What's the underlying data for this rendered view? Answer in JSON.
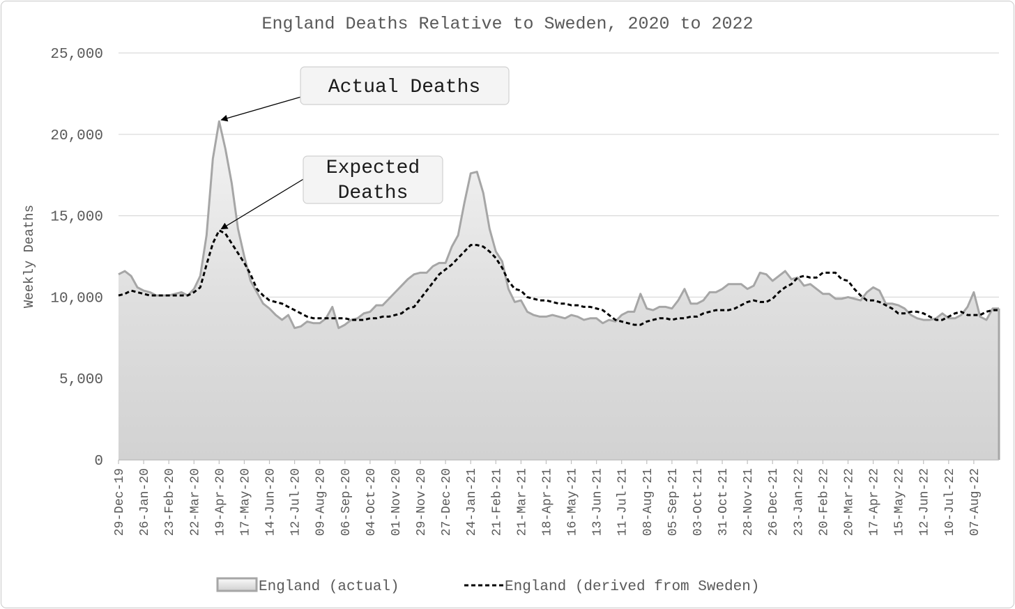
{
  "chart_data": {
    "type": "area",
    "title": "England Deaths Relative to Sweden, 2020 to 2022",
    "ylabel": "Weekly Deaths",
    "xlabel": "",
    "ylim": [
      0,
      25000
    ],
    "yticks": [
      0,
      5000,
      10000,
      15000,
      20000,
      25000
    ],
    "ytick_labels": [
      "0",
      "5,000",
      "10,000",
      "15,000",
      "20,000",
      "25,000"
    ],
    "grid": "horizontal",
    "legend_position": "bottom",
    "x_start": "29-Dec-19",
    "x_labels": [
      "29-Dec-19",
      "26-Jan-20",
      "23-Feb-20",
      "22-Mar-20",
      "19-Apr-20",
      "17-May-20",
      "14-Jun-20",
      "12-Jul-20",
      "09-Aug-20",
      "06-Sep-20",
      "04-Oct-20",
      "01-Nov-20",
      "29-Nov-20",
      "27-Dec-20",
      "24-Jan-21",
      "21-Feb-21",
      "21-Mar-21",
      "18-Apr-21",
      "16-May-21",
      "13-Jun-21",
      "11-Jul-21",
      "08-Aug-21",
      "05-Sep-21",
      "03-Oct-21",
      "31-Oct-21",
      "28-Nov-21",
      "26-Dec-21",
      "23-Jan-22",
      "20-Feb-22",
      "20-Mar-22",
      "17-Apr-22",
      "15-May-22",
      "12-Jun-22",
      "10-Jul-22",
      "07-Aug-22"
    ],
    "series": [
      {
        "name": "England (actual)",
        "style": "area",
        "color": "#a6a6a6",
        "values": [
          11400,
          11600,
          11300,
          10600,
          10400,
          10300,
          10100,
          10100,
          10100,
          10200,
          10300,
          10100,
          10500,
          11300,
          13800,
          18500,
          20800,
          19100,
          17000,
          14200,
          12500,
          11000,
          10300,
          9600,
          9300,
          8900,
          8600,
          8900,
          8100,
          8200,
          8500,
          8400,
          8400,
          8700,
          9400,
          8100,
          8300,
          8600,
          8700,
          9000,
          9100,
          9500,
          9500,
          9900,
          10300,
          10700,
          11100,
          11400,
          11500,
          11500,
          11900,
          12100,
          12100,
          13100,
          13800,
          15800,
          17600,
          17700,
          16400,
          14200,
          12800,
          12200,
          10500,
          9700,
          9800,
          9100,
          8900,
          8800,
          8800,
          8900,
          8800,
          8700,
          8900,
          8800,
          8600,
          8700,
          8700,
          8400,
          8600,
          8500,
          8900,
          9100,
          9100,
          10200,
          9300,
          9200,
          9400,
          9400,
          9300,
          9800,
          10500,
          9600,
          9600,
          9800,
          10300,
          10300,
          10500,
          10800,
          10800,
          10800,
          10500,
          10700,
          11500,
          11400,
          11000,
          11300,
          11600,
          11100,
          11200,
          10700,
          10800,
          10500,
          10200,
          10200,
          9900,
          9900,
          10000,
          9900,
          9800,
          10300,
          10600,
          10400,
          9600,
          9600,
          9500,
          9300,
          8900,
          8700,
          8600,
          8600,
          8700,
          9000,
          8700,
          8700,
          8900,
          9400,
          10300,
          8800,
          8600,
          9300,
          9300
        ]
      },
      {
        "name": "England (derived from Sweden)",
        "style": "dashed",
        "color": "#000000",
        "values": [
          10100,
          10200,
          10400,
          10300,
          10200,
          10100,
          10100,
          10100,
          10100,
          10100,
          10100,
          10100,
          10300,
          10600,
          12000,
          13300,
          14100,
          13900,
          13300,
          12700,
          12100,
          11400,
          10500,
          10100,
          9800,
          9700,
          9600,
          9400,
          9200,
          9000,
          8800,
          8700,
          8700,
          8700,
          8700,
          8700,
          8700,
          8600,
          8600,
          8600,
          8700,
          8700,
          8800,
          8800,
          8900,
          9000,
          9300,
          9400,
          9900,
          10400,
          10900,
          11400,
          11700,
          12000,
          12400,
          12800,
          13200,
          13200,
          13100,
          12800,
          12400,
          11800,
          11000,
          10500,
          10400,
          10000,
          9900,
          9800,
          9800,
          9700,
          9600,
          9600,
          9500,
          9500,
          9400,
          9400,
          9300,
          9200,
          8900,
          8600,
          8500,
          8400,
          8300,
          8300,
          8500,
          8600,
          8700,
          8700,
          8600,
          8700,
          8700,
          8800,
          8800,
          9000,
          9100,
          9200,
          9200,
          9200,
          9300,
          9500,
          9700,
          9800,
          9700,
          9700,
          9900,
          10300,
          10600,
          10800,
          11200,
          11300,
          11200,
          11200,
          11500,
          11500,
          11500,
          11100,
          11000,
          10500,
          10100,
          9800,
          9800,
          9700,
          9500,
          9300,
          9000,
          9000,
          9100,
          9100,
          9000,
          8800,
          8600,
          8600,
          8800,
          9000,
          9100,
          8900,
          8900,
          8900,
          9100,
          9200,
          9200
        ]
      }
    ],
    "annotations": [
      {
        "lines": [
          "Actual Deaths"
        ],
        "target_index": 16,
        "target_value": 20800
      },
      {
        "lines": [
          "Expected",
          "Deaths"
        ],
        "target_index": 16,
        "target_value": 14100
      }
    ]
  }
}
